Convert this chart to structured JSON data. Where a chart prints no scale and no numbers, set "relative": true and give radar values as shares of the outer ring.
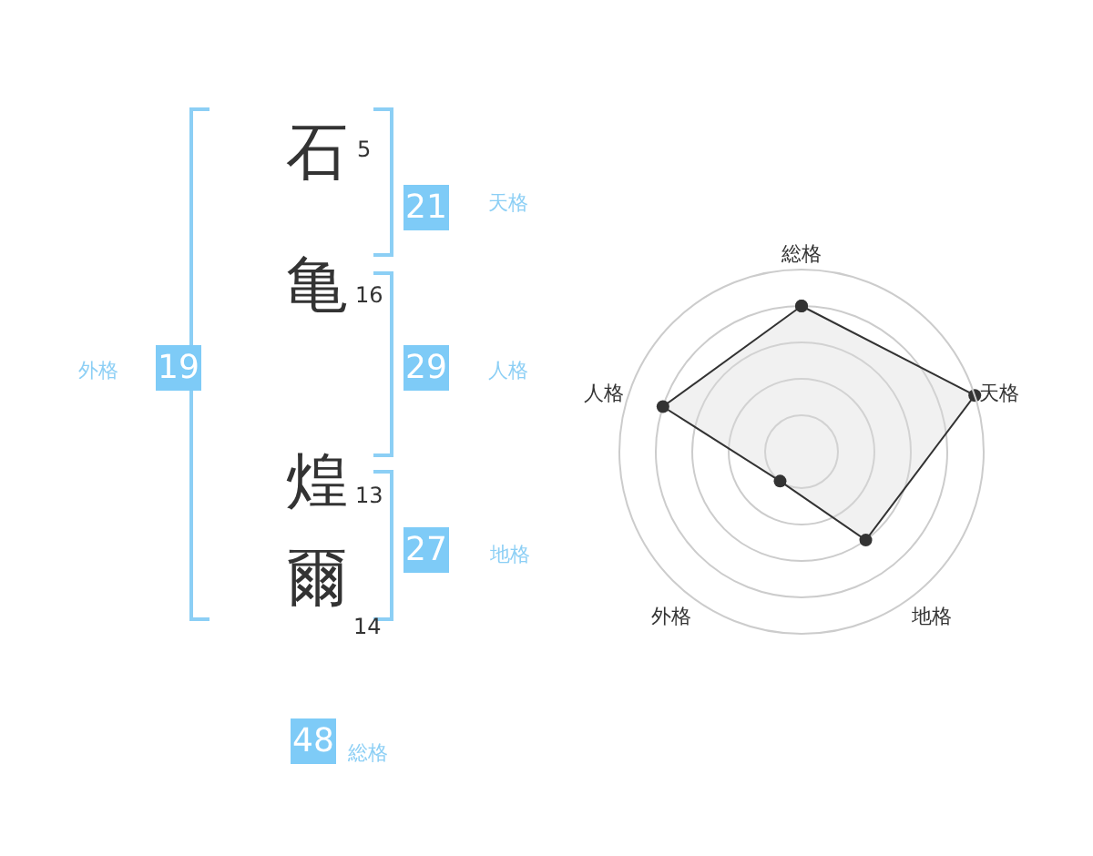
{
  "chart_data": [
    {
      "type": "other",
      "categories": [
        "石",
        "亀",
        "煌",
        "爾"
      ],
      "annotations": [
        "5",
        "16",
        "13",
        "14",
        "21",
        "天格",
        "29",
        "人格",
        "27",
        "地格",
        "19",
        "外格",
        "48",
        "総格"
      ]
    },
    {
      "type": "radar",
      "categories": [
        "総格",
        "天格",
        "地格",
        "外格",
        "人格"
      ],
      "relative": true,
      "grid": true,
      "marker": "circle",
      "series": [
        {
          "color": "#333333",
          "values": [
            0.8,
            1,
            0.6,
            0.2,
            0.8
          ]
        }
      ]
    }
  ]
}
